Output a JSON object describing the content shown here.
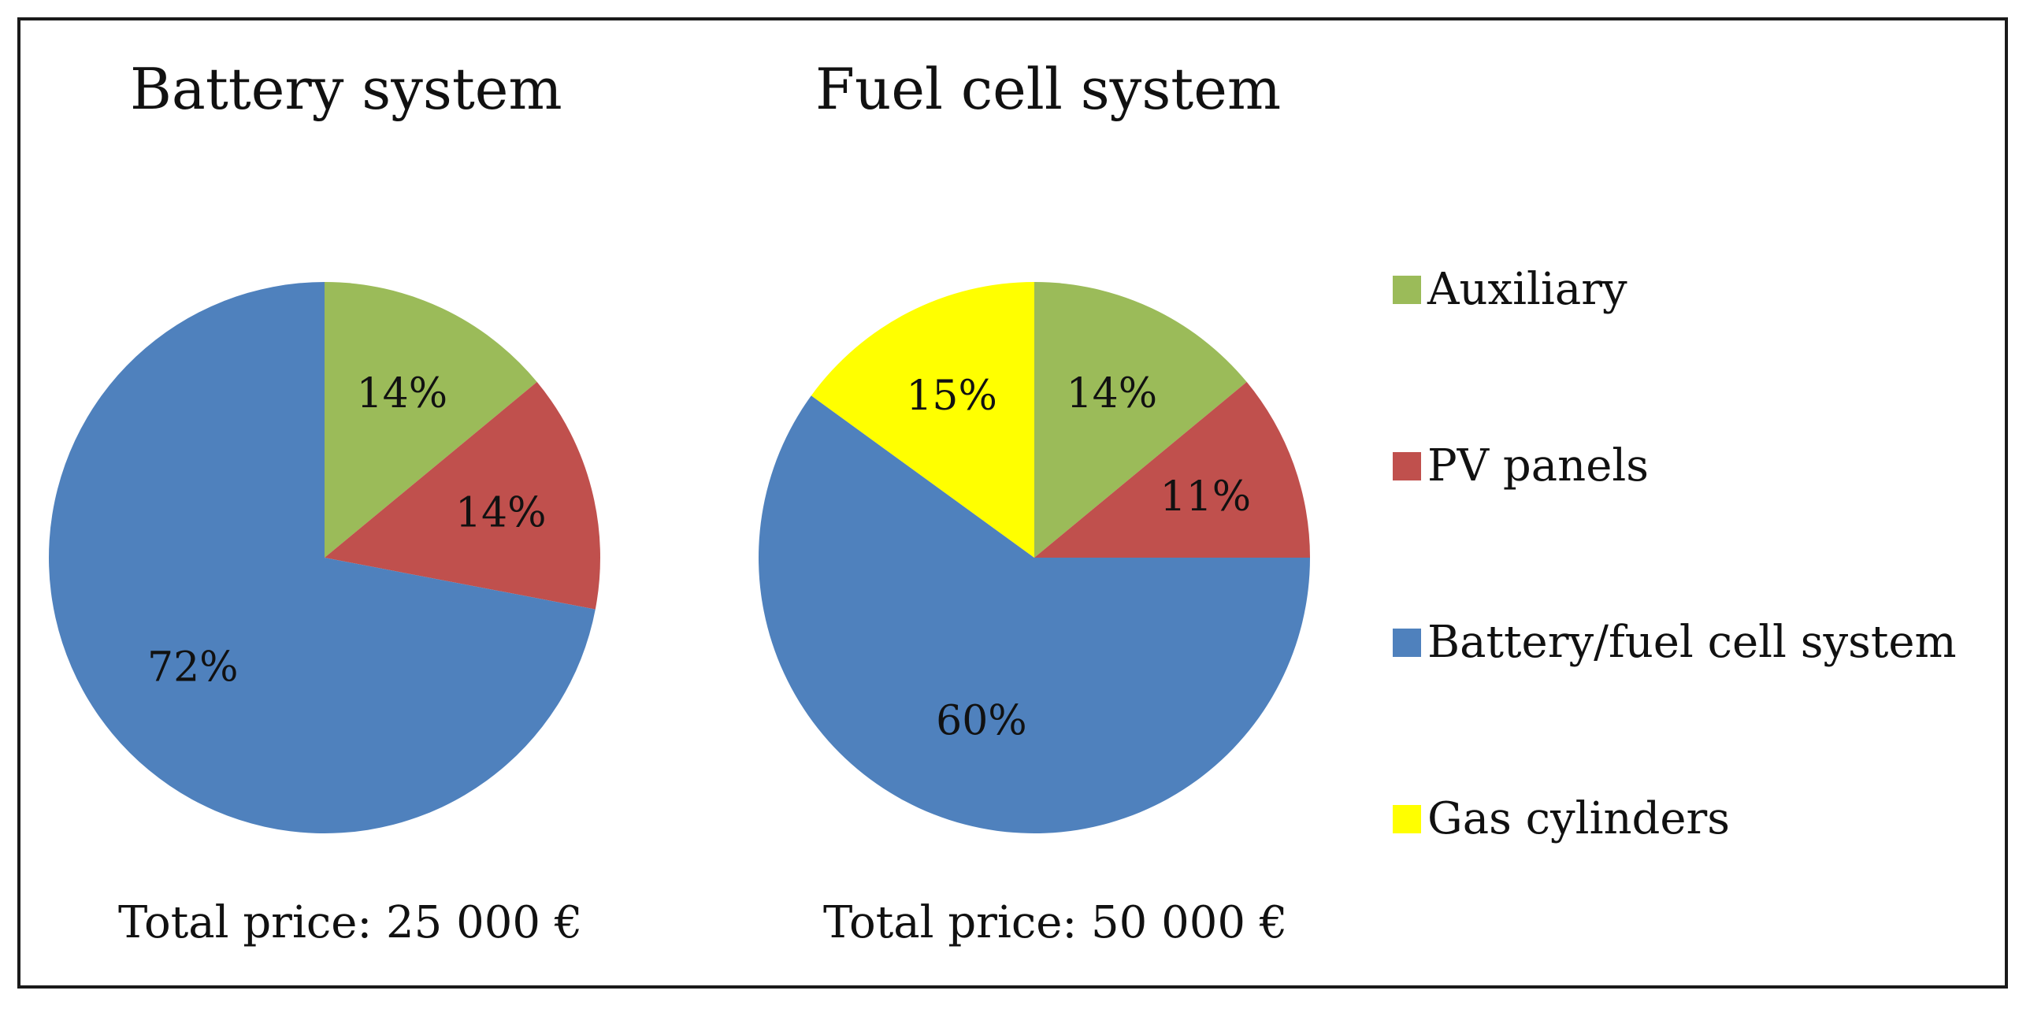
{
  "chart_data": [
    {
      "type": "pie",
      "title": "Battery system",
      "footer": "Total price: 25 000 €",
      "slices": [
        {
          "label": "Auxiliary",
          "value": 14,
          "text": "14%",
          "color": "#9bbb59"
        },
        {
          "label": "PV panels",
          "value": 14,
          "text": "14%",
          "color": "#c0504d"
        },
        {
          "label": "Battery/fuel cell system",
          "value": 72,
          "text": "72%",
          "color": "#4f81bd"
        }
      ]
    },
    {
      "type": "pie",
      "title": "Fuel cell system",
      "footer": "Total price: 50 000 €",
      "slices": [
        {
          "label": "Auxiliary",
          "value": 14,
          "text": "14%",
          "color": "#9bbb59"
        },
        {
          "label": "PV panels",
          "value": 11,
          "text": "11%",
          "color": "#c0504d"
        },
        {
          "label": "Battery/fuel cell system",
          "value": 60,
          "text": "60%",
          "color": "#4f81bd"
        },
        {
          "label": "Gas cylinders",
          "value": 15,
          "text": "15%",
          "color": "#ffff00"
        }
      ]
    }
  ],
  "legend": {
    "placement": "right",
    "items": [
      {
        "label": "Auxiliary",
        "color": "#9bbb59"
      },
      {
        "label": "PV panels",
        "color": "#c0504d"
      },
      {
        "label": "Battery/fuel cell system",
        "color": "#4f81bd"
      },
      {
        "label": "Gas cylinders",
        "color": "#ffff00"
      }
    ]
  }
}
